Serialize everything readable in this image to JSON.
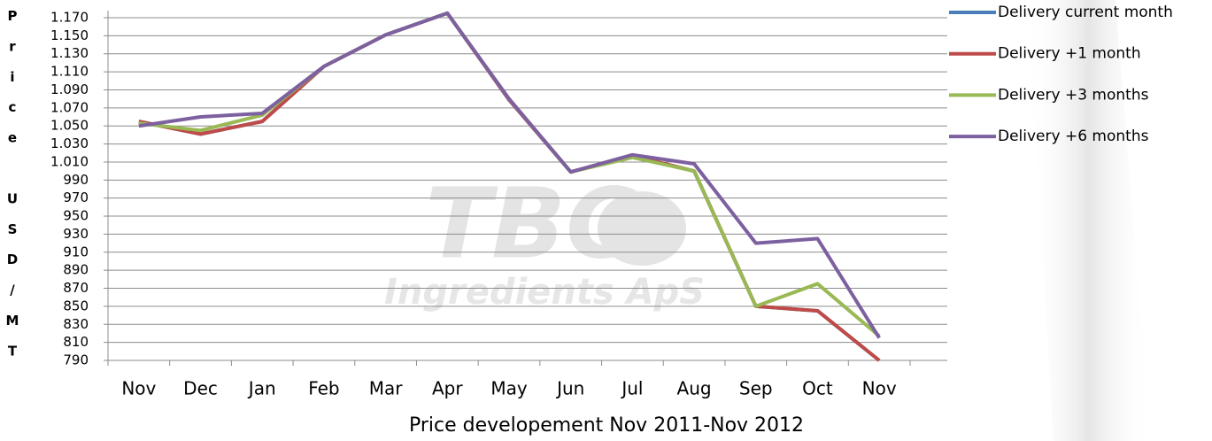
{
  "chart_data": {
    "type": "line",
    "title": "Price developement Nov 2011-Nov 2012",
    "ylabel": "Price USD/MT",
    "watermark": {
      "logo": "TBC",
      "text": "Ingredients ApS"
    },
    "categories": [
      "Nov",
      "Dec",
      "Jan",
      "Feb",
      "Mar",
      "Apr",
      "May",
      "Jun",
      "Jul",
      "Aug",
      "Sep",
      "Oct",
      "Nov"
    ],
    "series": [
      {
        "name": "Delivery current month",
        "color": "#4a7ebb",
        "values": [
          1055,
          1041,
          1055,
          1116,
          1151,
          1175,
          1079,
          999,
          1017,
          1000,
          850,
          845,
          790
        ]
      },
      {
        "name": "Delivery +1 month",
        "color": "#be4b48",
        "values": [
          1055,
          1041,
          1055,
          1116,
          1151,
          1175,
          1079,
          999,
          1017,
          1000,
          850,
          845,
          790
        ]
      },
      {
        "name": "Delivery +3 months",
        "color": "#98b954",
        "values": [
          1053,
          1045,
          1062,
          1116,
          1151,
          1175,
          1080,
          999,
          1015,
          1000,
          850,
          875,
          817
        ]
      },
      {
        "name": "Delivery +6 months",
        "color": "#7d60a0",
        "values": [
          1050,
          1060,
          1064,
          1116,
          1151,
          1175,
          1080,
          999,
          1018,
          1008,
          920,
          925,
          815
        ]
      }
    ],
    "ylim": [
      790,
      1170
    ],
    "yticks": [
      790,
      810,
      830,
      850,
      870,
      890,
      910,
      930,
      950,
      970,
      990,
      {
        "value": 1010,
        "label": "1.010"
      },
      {
        "value": 1030,
        "label": "1.030"
      },
      {
        "value": 1050,
        "label": "1.050"
      },
      {
        "value": 1070,
        "label": "1.070"
      },
      {
        "value": 1090,
        "label": "1.090"
      },
      {
        "value": 1110,
        "label": "1.110"
      },
      {
        "value": 1130,
        "label": "1.130"
      },
      {
        "value": 1150,
        "label": "1.150"
      },
      {
        "value": 1170,
        "label": "1.170"
      }
    ],
    "grid": true,
    "legend": "right"
  }
}
